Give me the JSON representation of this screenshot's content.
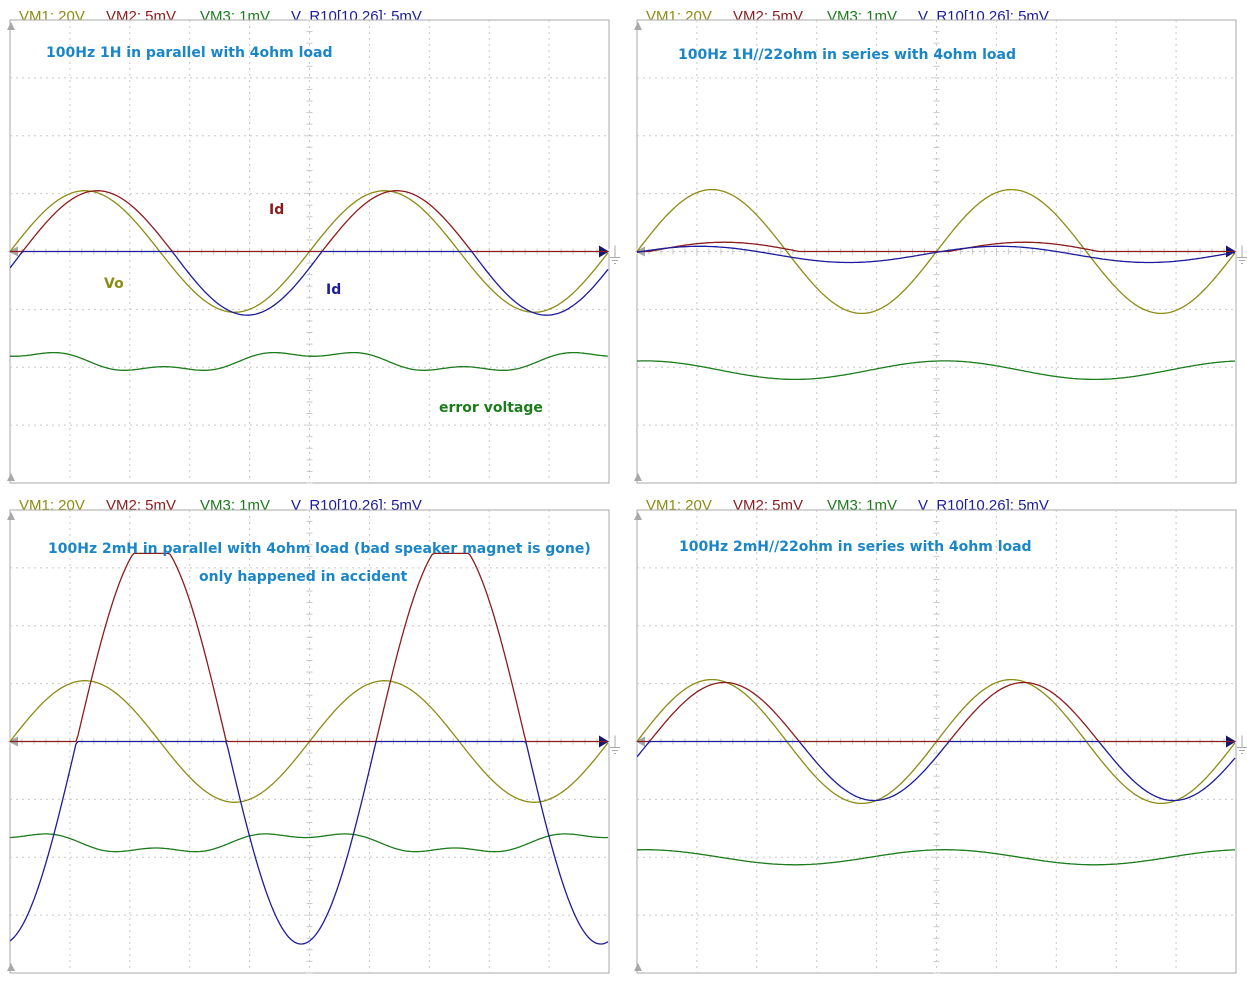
{
  "colors": {
    "vm1": "#8c8c14",
    "vm2": "#8c1c1c",
    "vm3": "#1c7c1c",
    "vr10": "#1c1c9c",
    "note": "#1a86c8",
    "grid": "#c8c8c8",
    "frame": "#a8a8a8",
    "marker": "#16166e"
  },
  "channels": [
    {
      "label": "VM1: 20V",
      "color_key": "vm1"
    },
    {
      "label": "VM2: 5mV",
      "color_key": "vm2"
    },
    {
      "label": "VM3: 1mV",
      "color_key": "vm3"
    },
    {
      "label": "V_R10[10,26]: 5mV",
      "color_key": "vr10"
    }
  ],
  "panels": [
    {
      "notes": [
        "100Hz 1H in parallel with 4ohm load"
      ],
      "trace_labels": [
        {
          "text": "Id",
          "color_key": "vm2"
        },
        {
          "text": "Vo",
          "color_key": "vm1"
        },
        {
          "text": "Id",
          "color_key": "vr10"
        },
        {
          "text": "error voltage",
          "color_key": "vm3"
        }
      ]
    },
    {
      "notes": [
        "100Hz 1H//22ohm in series with 4ohm load"
      ],
      "trace_labels": []
    },
    {
      "notes": [
        "100Hz 2mH in parallel with 4ohm load  (bad speaker magnet is gone)",
        "only happened in accident"
      ],
      "trace_labels": []
    },
    {
      "notes": [
        "100Hz 2mH//22ohm in series with 4ohm load"
      ],
      "trace_labels": []
    }
  ],
  "chart_data": [
    {
      "type": "line",
      "frequency_hz": 100,
      "series": [
        {
          "name": "VM1: 20V",
          "color": "#8c8c14",
          "shape": "sine",
          "amplitude_div": 1.05,
          "phase_deg": 0,
          "offset_div": 0
        },
        {
          "name": "VM2: 5mV",
          "color": "#8c1c1c",
          "shape": "halfwave-positive",
          "amplitude_div": 1.05,
          "phase_deg": -15,
          "offset_div": 0
        },
        {
          "name": "V_R10[10,26]: 5mV",
          "color": "#1c1c9c",
          "shape": "halfwave-negative",
          "amplitude_div": 1.1,
          "phase_deg": -15,
          "offset_div": 0
        },
        {
          "name": "VM3: 1mV",
          "color": "#1c7c1c",
          "shape": "sine-with-harmonic",
          "amplitude_div": 0.18,
          "phase_deg": 85,
          "offset_div": -1.9
        }
      ]
    },
    {
      "type": "line",
      "frequency_hz": 100,
      "series": [
        {
          "name": "VM1: 20V",
          "color": "#8c8c14",
          "shape": "sine",
          "amplitude_div": 1.07,
          "phase_deg": 0,
          "offset_div": 0
        },
        {
          "name": "VM2: 5mV",
          "color": "#8c1c1c",
          "shape": "halfwave-positive",
          "amplitude_div": 0.16,
          "phase_deg": -15,
          "offset_div": 0
        },
        {
          "name": "V_R10[10,26]: 5mV",
          "color": "#1c1c9c",
          "shape": "sine",
          "amplitude_div": 0.14,
          "phase_deg": 15,
          "offset_div": -0.05
        },
        {
          "name": "VM3: 1mV",
          "color": "#1c7c1c",
          "shape": "sine",
          "amplitude_div": 0.16,
          "phase_deg": 80,
          "offset_div": -2.05
        }
      ]
    },
    {
      "type": "line",
      "frequency_hz": 100,
      "series": [
        {
          "name": "VM1: 20V",
          "color": "#8c8c14",
          "shape": "sine",
          "amplitude_div": 1.05,
          "phase_deg": 0,
          "offset_div": 0
        },
        {
          "name": "VM2: 5mV",
          "color": "#8c1c1c",
          "shape": "halfwave-positive",
          "amplitude_div": 3.5,
          "phase_deg": -80,
          "offset_div": 0,
          "clip_top_div": 3.25
        },
        {
          "name": "V_R10[10,26]: 5mV",
          "color": "#1c1c9c",
          "shape": "halfwave-negative",
          "amplitude_div": 3.5,
          "phase_deg": -80,
          "offset_div": 0
        },
        {
          "name": "VM3: 1mV",
          "color": "#1c7c1c",
          "shape": "sine-with-harmonic",
          "amplitude_div": 0.18,
          "phase_deg": 95,
          "offset_div": -1.75
        }
      ]
    },
    {
      "type": "line",
      "frequency_hz": 100,
      "series": [
        {
          "name": "VM1: 20V",
          "color": "#8c8c14",
          "shape": "sine",
          "amplitude_div": 1.07,
          "phase_deg": 0,
          "offset_div": 0
        },
        {
          "name": "VM2: 5mV",
          "color": "#8c1c1c",
          "shape": "halfwave-positive",
          "amplitude_div": 1.02,
          "phase_deg": -15,
          "offset_div": 0
        },
        {
          "name": "V_R10[10,26]: 5mV",
          "color": "#1c1c9c",
          "shape": "halfwave-negative",
          "amplitude_div": 1.02,
          "phase_deg": -15,
          "offset_div": 0
        },
        {
          "name": "VM3: 1mV",
          "color": "#1c7c1c",
          "shape": "sine",
          "amplitude_div": 0.13,
          "phase_deg": 80,
          "offset_div": -2.0
        }
      ]
    }
  ]
}
